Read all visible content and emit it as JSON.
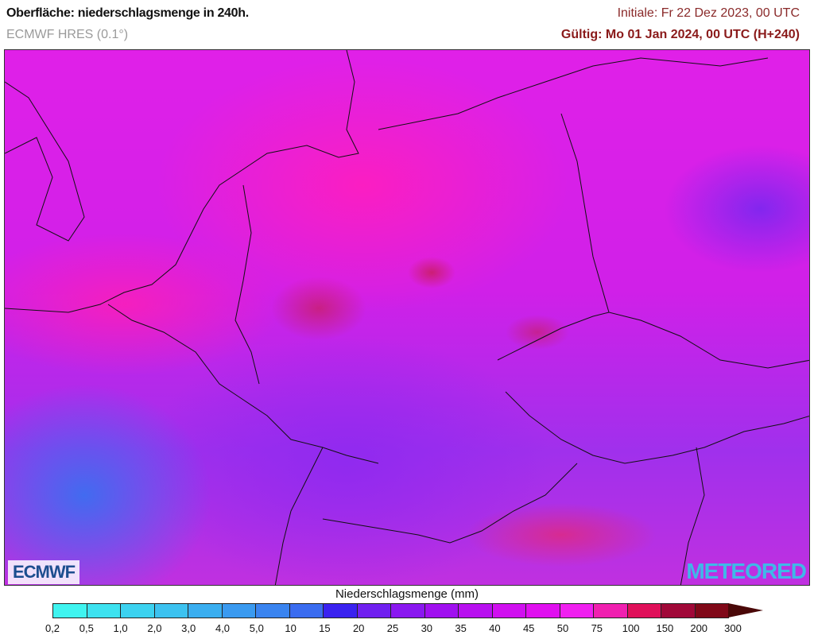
{
  "header": {
    "title": "Oberfläche: niederschlagsmenge in 240h.",
    "model": "ECMWF HRES (0.1°)",
    "initial": "Initiale: Fr 22 Dez 2023, 00 UTC",
    "valid": "Gültig: Mo 01 Jan 2024, 00 UTC (H+240)"
  },
  "logos": {
    "left": "ECMWF",
    "right": "METEORED"
  },
  "colorbar": {
    "title": "Niederschlagsmenge (mm)",
    "ticks": [
      "0,2",
      "0,5",
      "1,0",
      "2,0",
      "3,0",
      "4,0",
      "5,0",
      "10",
      "15",
      "20",
      "25",
      "30",
      "35",
      "40",
      "45",
      "50",
      "75",
      "100",
      "150",
      "200",
      "300"
    ],
    "colors": [
      "#3ff4f0",
      "#3de2f0",
      "#3cd2f0",
      "#3cc2f0",
      "#3aaef0",
      "#3a9af0",
      "#3a84f0",
      "#3a6cf0",
      "#3a22f0",
      "#7020f0",
      "#8a18f0",
      "#a010f0",
      "#b810f0",
      "#d010f0",
      "#e010f0",
      "#f020f0",
      "#f020b0",
      "#e0105a",
      "#a00838",
      "#800818"
    ],
    "overflow_color": "#4a0808"
  }
}
